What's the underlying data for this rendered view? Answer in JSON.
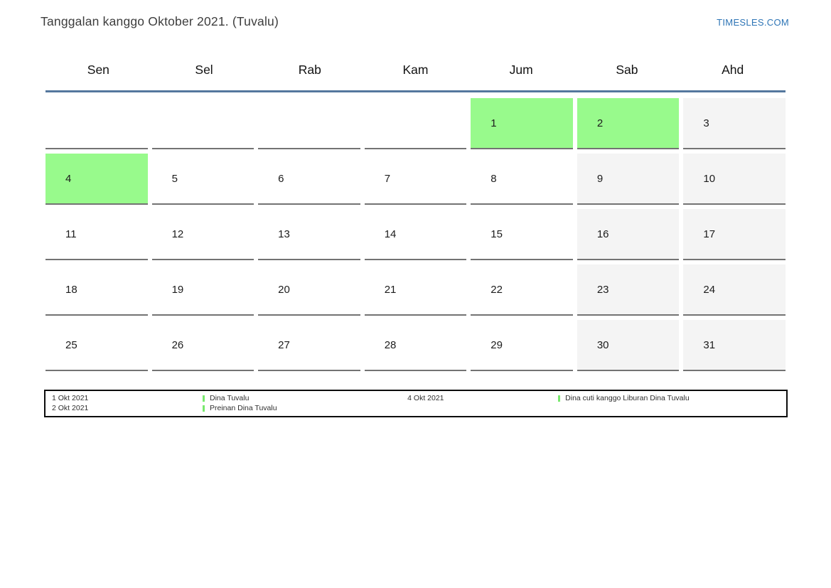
{
  "page": {
    "title": "Tanggalan kanggo Oktober 2021. (Tuvalu)",
    "site_link": "TIMESLES.COM"
  },
  "calendar": {
    "day_names": [
      "Sen",
      "Sel",
      "Rab",
      "Kam",
      "Jum",
      "Sab",
      "Ahd"
    ],
    "weeks": [
      [
        {
          "label": "",
          "type": "empty"
        },
        {
          "label": "",
          "type": "empty"
        },
        {
          "label": "",
          "type": "empty"
        },
        {
          "label": "",
          "type": "empty"
        },
        {
          "label": "1",
          "type": "holiday"
        },
        {
          "label": "2",
          "type": "holiday"
        },
        {
          "label": "3",
          "type": "weekend"
        }
      ],
      [
        {
          "label": "4",
          "type": "holiday"
        },
        {
          "label": "5",
          "type": "normal"
        },
        {
          "label": "6",
          "type": "normal"
        },
        {
          "label": "7",
          "type": "normal"
        },
        {
          "label": "8",
          "type": "normal"
        },
        {
          "label": "9",
          "type": "weekend"
        },
        {
          "label": "10",
          "type": "weekend"
        }
      ],
      [
        {
          "label": "11",
          "type": "normal"
        },
        {
          "label": "12",
          "type": "normal"
        },
        {
          "label": "13",
          "type": "normal"
        },
        {
          "label": "14",
          "type": "normal"
        },
        {
          "label": "15",
          "type": "normal"
        },
        {
          "label": "16",
          "type": "weekend"
        },
        {
          "label": "17",
          "type": "weekend"
        }
      ],
      [
        {
          "label": "18",
          "type": "normal"
        },
        {
          "label": "19",
          "type": "normal"
        },
        {
          "label": "20",
          "type": "normal"
        },
        {
          "label": "21",
          "type": "normal"
        },
        {
          "label": "22",
          "type": "normal"
        },
        {
          "label": "23",
          "type": "weekend"
        },
        {
          "label": "24",
          "type": "weekend"
        }
      ],
      [
        {
          "label": "25",
          "type": "normal"
        },
        {
          "label": "26",
          "type": "normal"
        },
        {
          "label": "27",
          "type": "normal"
        },
        {
          "label": "28",
          "type": "normal"
        },
        {
          "label": "29",
          "type": "normal"
        },
        {
          "label": "30",
          "type": "weekend"
        },
        {
          "label": "31",
          "type": "weekend"
        }
      ]
    ]
  },
  "legend": {
    "groups": [
      {
        "dates": [
          "1 Okt 2021",
          "2 Okt 2021"
        ],
        "labels": [
          "Dina Tuvalu",
          "Preinan Dina Tuvalu"
        ]
      },
      {
        "dates": [
          "4 Okt 2021"
        ],
        "labels": [
          "Dina cuti kanggo Liburan Dina Tuvalu"
        ]
      }
    ]
  },
  "colors": {
    "holiday_green": "#98fa8c",
    "weekend_gray": "#f4f4f4",
    "header_line_blue": "#54779e",
    "link_blue": "#2e75b6",
    "cell_border_gray": "#737373",
    "legend_marker_green": "#79e96e"
  }
}
